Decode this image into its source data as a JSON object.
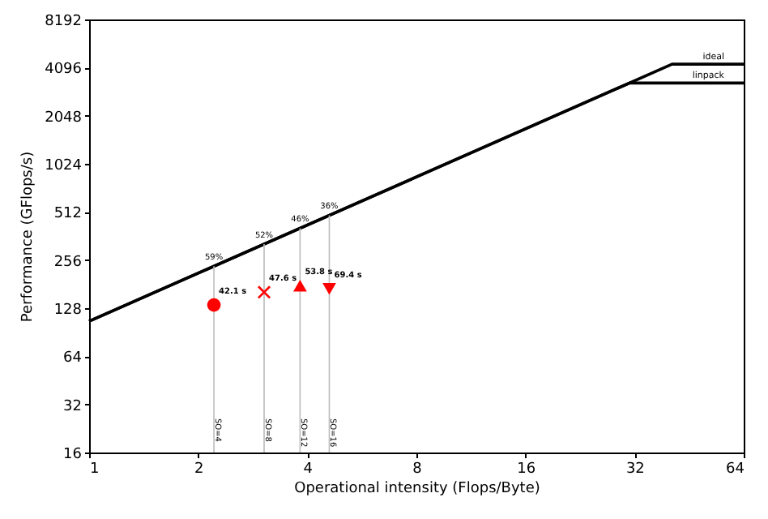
{
  "chart_data": {
    "type": "line",
    "xlabel": "Operational intensity (Flops/Byte)",
    "ylabel": "Performance (GFlops/s)",
    "log": "xy",
    "grid": false,
    "xlim": [
      1,
      64
    ],
    "xticks": [
      1,
      2,
      4,
      8,
      16,
      32,
      64
    ],
    "ylim": [
      16,
      8192
    ],
    "yticks": [
      16,
      32,
      64,
      128,
      256,
      512,
      1024,
      2048,
      4096,
      8192
    ],
    "series": [
      {
        "name": "ideal",
        "color": "#000000",
        "x": [
          1,
          40.6,
          64
        ],
        "values": [
          106,
          4300,
          4300
        ]
      },
      {
        "name": "linpack",
        "color": "#000000",
        "x": [
          1,
          31,
          64
        ],
        "values": [
          106,
          3280,
          3280
        ]
      },
      {
        "color": "#bbbbbb",
        "x": [
          2.21,
          2.21
        ],
        "values": [
          16,
          234
        ]
      },
      {
        "color": "#bbbbbb",
        "x": [
          3.04,
          3.04
        ],
        "values": [
          16,
          322
        ]
      },
      {
        "color": "#bbbbbb",
        "x": [
          3.82,
          3.82
        ],
        "values": [
          16,
          405
        ]
      },
      {
        "color": "#bbbbbb",
        "x": [
          4.6,
          4.6
        ],
        "values": [
          16,
          488
        ]
      },
      {
        "type": "scatter",
        "color": "#ff0000",
        "marker": "circle",
        "x": [
          2.21
        ],
        "values": [
          134
        ]
      },
      {
        "type": "scatter",
        "color": "#ff0000",
        "marker": "cross",
        "x": [
          3.04
        ],
        "values": [
          161
        ]
      },
      {
        "type": "scatter",
        "color": "#ff0000",
        "marker": "triangle",
        "x": [
          3.82
        ],
        "values": [
          177
        ]
      },
      {
        "type": "scatter",
        "color": "#ff0000",
        "marker": "triangle-down",
        "x": [
          4.6
        ],
        "values": [
          169
        ]
      }
    ],
    "annotations": [
      {
        "text": "59%",
        "x": 2.21,
        "y": 234
      },
      {
        "text": "52%",
        "x": 3.04,
        "y": 322
      },
      {
        "text": "46%",
        "x": 3.82,
        "y": 405
      },
      {
        "text": "36%",
        "x": 4.6,
        "y": 488
      },
      {
        "text": "42.1 s",
        "x": 2.21,
        "y": 134
      },
      {
        "text": "47.6 s",
        "x": 3.04,
        "y": 161
      },
      {
        "text": "53.8 s",
        "x": 3.82,
        "y": 177
      },
      {
        "text": "69.4 s",
        "x": 4.6,
        "y": 169
      },
      {
        "text": "SO=4",
        "x": 2.21,
        "y": 18
      },
      {
        "text": "SO=8",
        "x": 3.04,
        "y": 18
      },
      {
        "text": "SO=12",
        "x": 3.82,
        "y": 18
      },
      {
        "text": "SO=16",
        "x": 4.6,
        "y": 18
      }
    ]
  }
}
